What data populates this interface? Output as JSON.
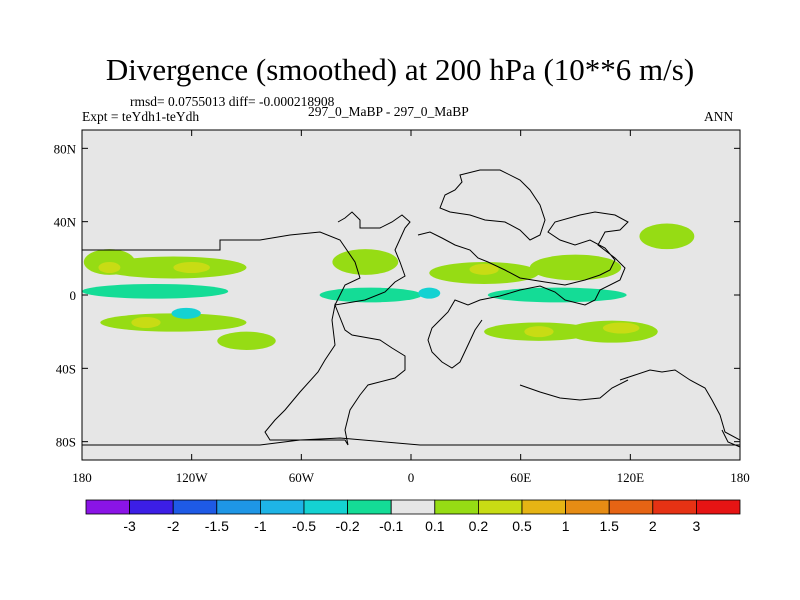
{
  "chart_data": {
    "type": "contour-map",
    "title": "Divergence (smoothed) at 200 hPa (10**6 m/s)",
    "stats": "rmsd= 0.0755013 diff= -0.000218908",
    "experiment": "Expt = teYdh1-teYdh",
    "case": "297_0_MaBP - 297_0_MaBP",
    "season": "ANN",
    "x_axis": {
      "range": [
        -180,
        180
      ],
      "tick_labels": [
        "180",
        "120W",
        "60W",
        "0",
        "60E",
        "120E",
        "180"
      ],
      "tick_values": [
        -180,
        -120,
        -60,
        0,
        60,
        120,
        180
      ]
    },
    "y_axis": {
      "range": [
        -90,
        90
      ],
      "tick_labels": [
        "80N",
        "40N",
        "0",
        "40S",
        "80S"
      ],
      "tick_values": [
        80,
        40,
        0,
        -40,
        -80
      ]
    },
    "contour_levels": [
      "-3",
      "-2",
      "-1.5",
      "-1",
      "-0.5",
      "-0.2",
      "-0.1",
      "0.1",
      "0.2",
      "0.5",
      "1",
      "1.5",
      "2",
      "3"
    ],
    "colorbar_colors": [
      "#8a14e6",
      "#3c1ee6",
      "#1e5ae6",
      "#1e96e6",
      "#1eb4e6",
      "#14d2d2",
      "#14dc96",
      "#e6e6e6",
      "#96dc14",
      "#c8dc14",
      "#e6b414",
      "#e68c14",
      "#e66414",
      "#e63214",
      "#e61414"
    ],
    "background_color": "#e6e6e6",
    "features": [
      {
        "name": "eq-strip-pacific",
        "level_band": 6,
        "lon": -140,
        "lat": 2,
        "rx": 40,
        "ry": 4
      },
      {
        "name": "eq-strip-atlantic",
        "level_band": 6,
        "lon": -22,
        "lat": 0,
        "rx": 28,
        "ry": 4
      },
      {
        "name": "eq-strip-indian",
        "level_band": 6,
        "lon": 80,
        "lat": 0,
        "rx": 38,
        "ry": 4
      },
      {
        "name": "north-pacific-band",
        "level_band": 8,
        "lon": -130,
        "lat": 15,
        "rx": 40,
        "ry": 6
      },
      {
        "name": "north-pacific-band-2",
        "level_band": 8,
        "lon": -165,
        "lat": 18,
        "rx": 14,
        "ry": 7
      },
      {
        "name": "south-pacific-band",
        "level_band": 8,
        "lon": -130,
        "lat": -15,
        "rx": 40,
        "ry": 5
      },
      {
        "name": "south-pacific-band-2",
        "level_band": 8,
        "lon": -90,
        "lat": -25,
        "rx": 16,
        "ry": 5
      },
      {
        "name": "atlantic-north",
        "level_band": 8,
        "lon": -25,
        "lat": 18,
        "rx": 18,
        "ry": 7
      },
      {
        "name": "africa-north",
        "level_band": 8,
        "lon": 40,
        "lat": 12,
        "rx": 30,
        "ry": 6
      },
      {
        "name": "asia-north",
        "level_band": 8,
        "lon": 90,
        "lat": 15,
        "rx": 25,
        "ry": 7
      },
      {
        "name": "indian-south",
        "level_band": 8,
        "lon": 70,
        "lat": -20,
        "rx": 30,
        "ry": 5
      },
      {
        "name": "australia-south",
        "level_band": 8,
        "lon": 110,
        "lat": -20,
        "rx": 25,
        "ry": 6
      },
      {
        "name": "nw-pacific",
        "level_band": 8,
        "lon": 140,
        "lat": 32,
        "rx": 15,
        "ry": 7
      },
      {
        "name": "eq-120w-negative",
        "level_band": 5,
        "lon": -123,
        "lat": -10,
        "rx": 8,
        "ry": 3
      },
      {
        "name": "eq-east-negative",
        "level_band": 5,
        "lon": 10,
        "lat": 1,
        "rx": 6,
        "ry": 3
      },
      {
        "name": "pos-core-1",
        "level_band": 9,
        "lon": -165,
        "lat": 15,
        "rx": 6,
        "ry": 3
      },
      {
        "name": "pos-core-2",
        "level_band": 9,
        "lon": -120,
        "lat": 15,
        "rx": 10,
        "ry": 3
      },
      {
        "name": "pos-core-3",
        "level_band": 9,
        "lon": -145,
        "lat": -15,
        "rx": 8,
        "ry": 3
      },
      {
        "name": "pos-core-4",
        "level_band": 9,
        "lon": 40,
        "lat": 14,
        "rx": 8,
        "ry": 3
      },
      {
        "name": "pos-core-5",
        "level_band": 9,
        "lon": 70,
        "lat": -20,
        "rx": 8,
        "ry": 3
      },
      {
        "name": "pos-core-6",
        "level_band": 9,
        "lon": 115,
        "lat": -18,
        "rx": 10,
        "ry": 3
      }
    ]
  }
}
